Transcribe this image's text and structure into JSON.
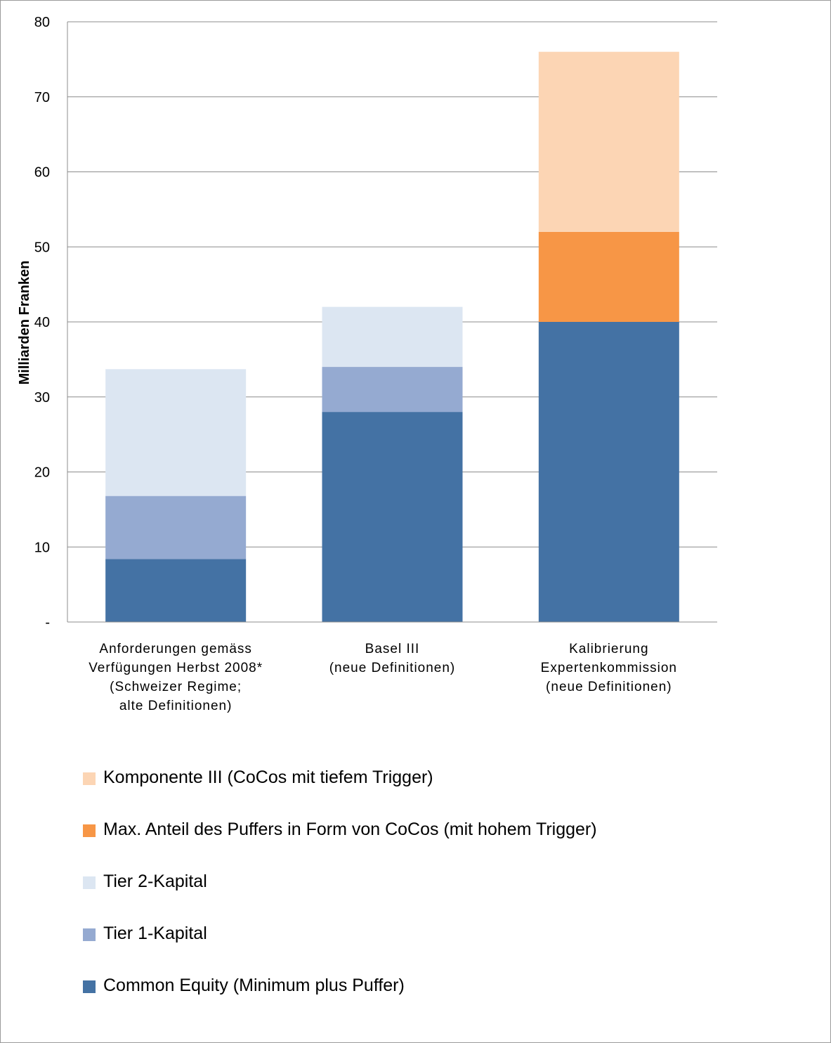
{
  "chart_data": {
    "type": "bar",
    "stacked": true,
    "ylabel": "Milliarden Franken",
    "ylim": [
      0,
      80
    ],
    "yticks": [
      0,
      10,
      20,
      30,
      40,
      50,
      60,
      70,
      80
    ],
    "ytick_labels": [
      "-",
      "10",
      "20",
      "30",
      "40",
      "50",
      "60",
      "70",
      "80"
    ],
    "grid": true,
    "legend_position": "bottom",
    "categories": [
      [
        "Anforderungen gemäss",
        "Verfügungen Herbst 2008*",
        "(Schweizer Regime;",
        "alte Definitionen)"
      ],
      [
        "Basel III",
        "(neue Definitionen)"
      ],
      [
        "Kalibrierung",
        "Expertenkommission",
        "(neue Definitionen)"
      ]
    ],
    "series": [
      {
        "name": "Common Equity (Minimum plus Puffer)",
        "color": "#4472a4",
        "values": [
          8.4,
          28,
          40
        ]
      },
      {
        "name": "Tier 1-Kapital",
        "color": "#95aad1",
        "values": [
          8.4,
          6,
          0
        ]
      },
      {
        "name": "Tier 2-Kapital",
        "color": "#dce6f2",
        "values": [
          16.9,
          8,
          0
        ]
      },
      {
        "name": "Max. Anteil des Puffers in Form von CoCos (mit hohem Trigger)",
        "color": "#f79646",
        "values": [
          0,
          0,
          12
        ]
      },
      {
        "name": "Komponente III (CoCos mit tiefem Trigger)",
        "color": "#fcd5b4",
        "values": [
          0,
          0,
          24
        ]
      }
    ],
    "legend_order": [
      4,
      3,
      2,
      1,
      0
    ]
  }
}
